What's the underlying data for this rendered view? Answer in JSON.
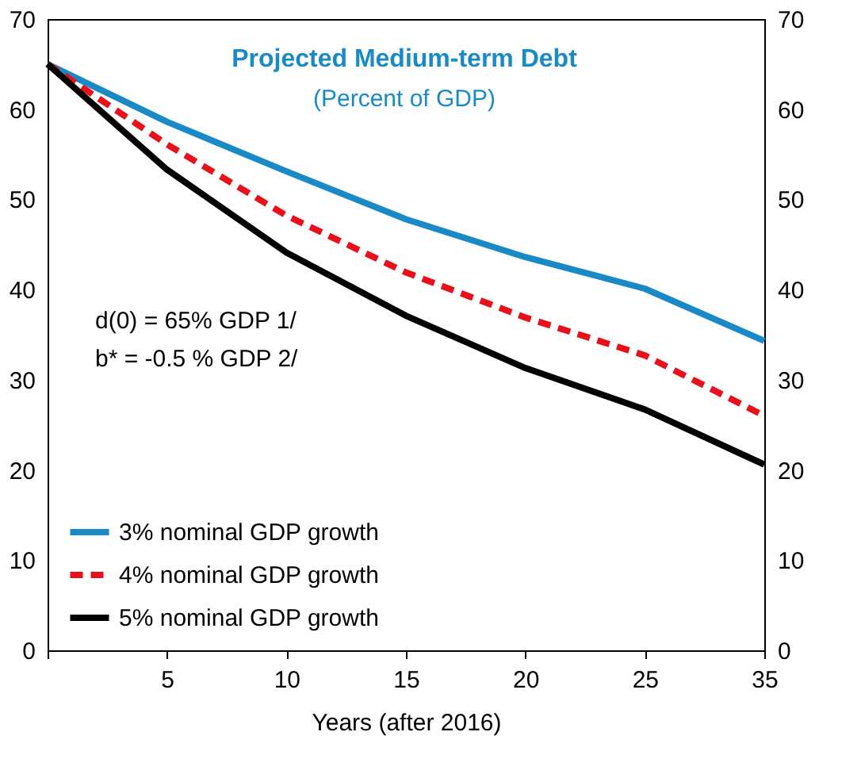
{
  "chart_data": {
    "type": "line",
    "title": "Projected Medium-term Debt",
    "subtitle": "(Percent of GDP)",
    "xlabel": "Years (after 2016)",
    "categories": [
      null,
      "5",
      "10",
      "15",
      "20",
      "25",
      "35"
    ],
    "series": [
      {
        "name": "3% nominal GDP growth",
        "color": "#1a8ac6",
        "values": [
          65,
          58.6,
          53.1,
          47.8,
          43.6,
          40.1,
          34.3
        ]
      },
      {
        "name": "4% nominal GDP growth",
        "color": "#e8101a",
        "line_style": "dashed",
        "values": [
          65,
          56.1,
          48.2,
          41.9,
          36.9,
          32.7,
          26.0
        ]
      },
      {
        "name": "5% nominal GDP growth",
        "color": "#000000",
        "values": [
          65,
          53.3,
          44.1,
          37.1,
          31.3,
          26.7,
          20.6
        ]
      }
    ],
    "annotations": [
      "d(0)  = 65% GDP 1/",
      "b* = -0.5 % GDP 2/"
    ],
    "ylim": [
      0,
      70
    ],
    "yticks": [
      0,
      10,
      20,
      30,
      40,
      50,
      60,
      70
    ],
    "y2lim": [
      0,
      70
    ],
    "y2ticks": [
      0,
      10,
      20,
      30,
      40,
      50,
      60,
      70
    ],
    "grid": false,
    "legend": "bottom left",
    "marker": "none",
    "line_style": "solid"
  }
}
